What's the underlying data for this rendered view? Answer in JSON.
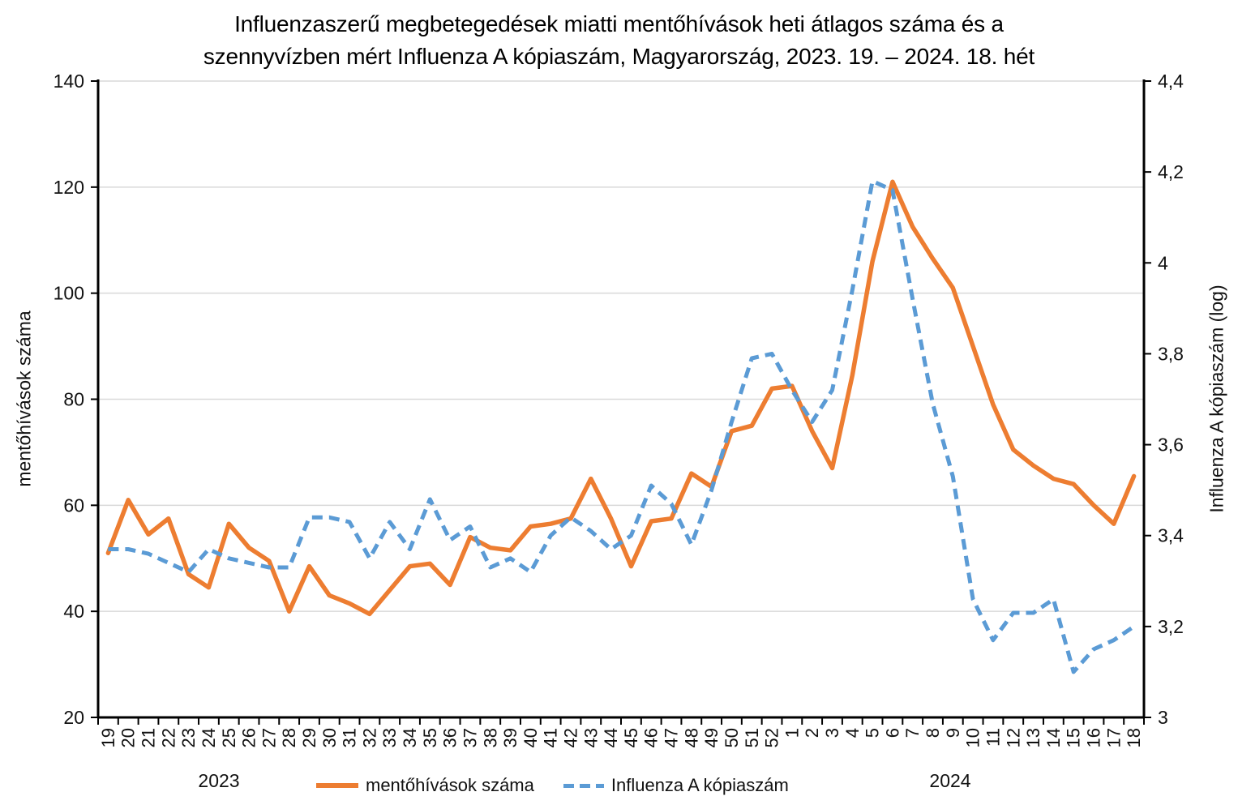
{
  "chart_data": {
    "type": "line",
    "title_line1": "Influenzaszerű megbetegedések miatti mentőhívások heti átlagos száma és a",
    "title_line2": "szennyvízben mért Influenza A kópiaszám, Magyarország, 2023. 19. – 2024. 18. hét",
    "categories": [
      "19",
      "20",
      "21",
      "22",
      "23",
      "24",
      "25",
      "26",
      "27",
      "28",
      "29",
      "30",
      "31",
      "32",
      "33",
      "34",
      "35",
      "36",
      "37",
      "38",
      "39",
      "40",
      "41",
      "42",
      "43",
      "44",
      "45",
      "46",
      "47",
      "48",
      "49",
      "50",
      "51",
      "52",
      "1",
      "2",
      "3",
      "4",
      "5",
      "6",
      "7",
      "8",
      "9",
      "10",
      "11",
      "12",
      "13",
      "14",
      "15",
      "16",
      "17",
      "18"
    ],
    "year_left": "2023",
    "year_right": "2024",
    "left_axis": {
      "title": "mentőhívások száma",
      "min": 20,
      "max": 140,
      "step": 20,
      "tick_labels": [
        "20",
        "40",
        "60",
        "80",
        "100",
        "120",
        "140"
      ]
    },
    "right_axis": {
      "title": "Influenza A kópiaszám (log)",
      "min": 3,
      "max": 4.4,
      "step": 0.2,
      "tick_labels": [
        "3",
        "3,2",
        "3,4",
        "3,6",
        "3,8",
        "4",
        "4,2",
        "4,4"
      ]
    },
    "grid": {
      "show": true,
      "color": "#D9D9D9"
    },
    "axis_color": "#000000",
    "legend_position": "bottom",
    "series": [
      {
        "name": "mentőhívások száma",
        "axis": "left",
        "color": "#ED7D31",
        "style": "solid",
        "values": [
          51,
          61,
          54.5,
          57.5,
          47,
          44.5,
          56.5,
          52,
          49.5,
          40,
          48.5,
          43,
          41.5,
          39.5,
          44,
          48.5,
          49,
          45,
          54,
          52,
          51.5,
          56,
          56.5,
          57.5,
          65,
          57.5,
          48.5,
          57,
          57.5,
          66,
          63.5,
          74,
          75,
          82,
          82.5,
          74,
          67,
          84.5,
          106,
          121,
          112.5,
          106.5,
          101,
          90,
          79,
          70.5,
          67.5,
          65,
          64,
          60,
          56.5,
          65.5
        ]
      },
      {
        "name": "Influenza A kópiaszám",
        "axis": "right",
        "color": "#5B9BD5",
        "style": "dashed",
        "values": [
          3.37,
          3.37,
          3.36,
          3.34,
          3.32,
          3.37,
          3.35,
          3.34,
          3.33,
          3.33,
          3.44,
          3.44,
          3.43,
          3.35,
          3.43,
          3.37,
          3.48,
          3.39,
          3.42,
          3.33,
          3.35,
          3.32,
          3.4,
          3.44,
          3.41,
          3.37,
          3.4,
          3.51,
          3.47,
          3.38,
          3.5,
          3.65,
          3.79,
          3.8,
          3.72,
          3.65,
          3.72,
          3.94,
          4.18,
          4.16,
          3.92,
          3.69,
          3.53,
          3.26,
          3.17,
          3.23,
          3.23,
          3.26,
          3.1,
          3.15,
          3.17,
          3.2
        ]
      }
    ]
  }
}
